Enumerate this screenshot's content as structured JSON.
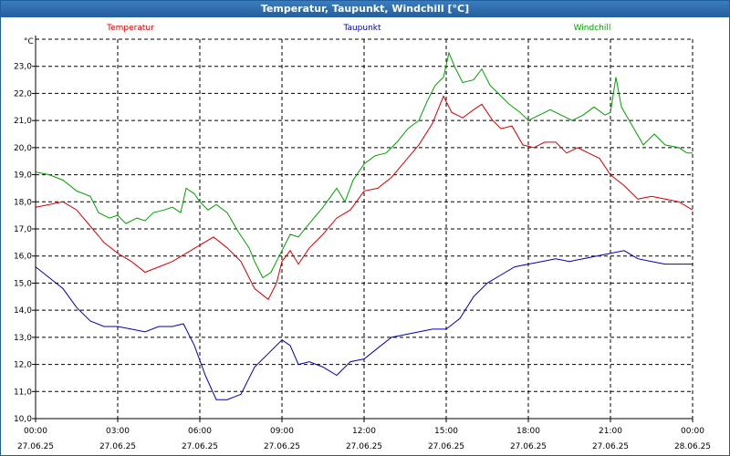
{
  "window": {
    "title": "Temperatur, Taupunkt, Windchill [°C]"
  },
  "chart_data": {
    "type": "line",
    "title": "Temperatur, Taupunkt, Windchill [°C]",
    "ylabel": "°C",
    "ylim": [
      10.0,
      24.0
    ],
    "xlim": [
      0,
      24
    ],
    "grid": true,
    "legend_position": "top",
    "y_ticks": [
      "10,0",
      "11,0",
      "12,0",
      "13,0",
      "14,0",
      "15,0",
      "16,0",
      "17,0",
      "18,0",
      "19,0",
      "20,0",
      "21,0",
      "22,0",
      "23,0"
    ],
    "x_ticks": [
      {
        "time": "00:00",
        "date": "27.06.25"
      },
      {
        "time": "03:00",
        "date": "27.06.25"
      },
      {
        "time": "06:00",
        "date": "27.06.25"
      },
      {
        "time": "09:00",
        "date": "27.06.25"
      },
      {
        "time": "12:00",
        "date": "27.06.25"
      },
      {
        "time": "15:00",
        "date": "27.06.25"
      },
      {
        "time": "18:00",
        "date": "27.06.25"
      },
      {
        "time": "21:00",
        "date": "27.06.25"
      },
      {
        "time": "00:00",
        "date": "28.06.25"
      }
    ],
    "series": [
      {
        "name": "Temperatur",
        "color": "#d40000",
        "points": [
          [
            0,
            17.8
          ],
          [
            0.5,
            17.9
          ],
          [
            1,
            18.0
          ],
          [
            1.5,
            17.7
          ],
          [
            2,
            17.1
          ],
          [
            2.5,
            16.5
          ],
          [
            3,
            16.1
          ],
          [
            3.5,
            15.8
          ],
          [
            4,
            15.4
          ],
          [
            4.5,
            15.6
          ],
          [
            5,
            15.8
          ],
          [
            5.5,
            16.1
          ],
          [
            6,
            16.4
          ],
          [
            6.5,
            16.7
          ],
          [
            7,
            16.3
          ],
          [
            7.5,
            15.8
          ],
          [
            8,
            14.8
          ],
          [
            8.5,
            14.4
          ],
          [
            8.8,
            15.0
          ],
          [
            9,
            15.8
          ],
          [
            9.3,
            16.2
          ],
          [
            9.6,
            15.7
          ],
          [
            10,
            16.3
          ],
          [
            10.5,
            16.8
          ],
          [
            11,
            17.4
          ],
          [
            11.5,
            17.7
          ],
          [
            12,
            18.4
          ],
          [
            12.5,
            18.5
          ],
          [
            13,
            18.9
          ],
          [
            13.5,
            19.5
          ],
          [
            14,
            20.1
          ],
          [
            14.5,
            20.9
          ],
          [
            14.9,
            21.9
          ],
          [
            15.2,
            21.3
          ],
          [
            15.6,
            21.1
          ],
          [
            16,
            21.4
          ],
          [
            16.3,
            21.6
          ],
          [
            16.7,
            21.0
          ],
          [
            17,
            20.7
          ],
          [
            17.4,
            20.8
          ],
          [
            17.8,
            20.1
          ],
          [
            18.2,
            20.0
          ],
          [
            18.6,
            20.2
          ],
          [
            19,
            20.2
          ],
          [
            19.4,
            19.8
          ],
          [
            19.8,
            20.0
          ],
          [
            20.2,
            19.8
          ],
          [
            20.6,
            19.6
          ],
          [
            21,
            19.0
          ],
          [
            21.5,
            18.6
          ],
          [
            22,
            18.1
          ],
          [
            22.5,
            18.2
          ],
          [
            23,
            18.1
          ],
          [
            23.5,
            18.0
          ],
          [
            24,
            17.7
          ]
        ]
      },
      {
        "name": "Taupunkt",
        "color": "#0000b4",
        "points": [
          [
            0,
            15.6
          ],
          [
            0.5,
            15.2
          ],
          [
            1,
            14.8
          ],
          [
            1.5,
            14.1
          ],
          [
            2,
            13.6
          ],
          [
            2.5,
            13.4
          ],
          [
            3,
            13.4
          ],
          [
            3.5,
            13.3
          ],
          [
            4,
            13.2
          ],
          [
            4.5,
            13.4
          ],
          [
            5,
            13.4
          ],
          [
            5.4,
            13.5
          ],
          [
            5.8,
            12.7
          ],
          [
            6.2,
            11.6
          ],
          [
            6.6,
            10.7
          ],
          [
            7,
            10.7
          ],
          [
            7.5,
            10.9
          ],
          [
            8,
            11.9
          ],
          [
            8.5,
            12.4
          ],
          [
            9,
            12.9
          ],
          [
            9.3,
            12.7
          ],
          [
            9.6,
            12.0
          ],
          [
            10,
            12.1
          ],
          [
            10.5,
            11.9
          ],
          [
            11,
            11.6
          ],
          [
            11.5,
            12.1
          ],
          [
            12,
            12.2
          ],
          [
            12.5,
            12.6
          ],
          [
            13,
            13.0
          ],
          [
            13.5,
            13.1
          ],
          [
            14,
            13.2
          ],
          [
            14.5,
            13.3
          ],
          [
            15,
            13.3
          ],
          [
            15.5,
            13.7
          ],
          [
            16,
            14.5
          ],
          [
            16.5,
            15.0
          ],
          [
            17,
            15.3
          ],
          [
            17.5,
            15.6
          ],
          [
            18,
            15.7
          ],
          [
            18.5,
            15.8
          ],
          [
            19,
            15.9
          ],
          [
            19.5,
            15.8
          ],
          [
            20,
            15.9
          ],
          [
            20.5,
            16.0
          ],
          [
            21,
            16.1
          ],
          [
            21.5,
            16.2
          ],
          [
            22,
            15.9
          ],
          [
            22.5,
            15.8
          ],
          [
            23,
            15.7
          ],
          [
            23.5,
            15.7
          ],
          [
            24,
            15.7
          ]
        ]
      },
      {
        "name": "Windchill",
        "color": "#00a000",
        "points": [
          [
            0,
            19.1
          ],
          [
            0.5,
            19.0
          ],
          [
            1,
            18.8
          ],
          [
            1.5,
            18.4
          ],
          [
            2,
            18.2
          ],
          [
            2.3,
            17.6
          ],
          [
            2.7,
            17.4
          ],
          [
            3,
            17.5
          ],
          [
            3.3,
            17.2
          ],
          [
            3.7,
            17.4
          ],
          [
            4,
            17.3
          ],
          [
            4.3,
            17.6
          ],
          [
            4.7,
            17.7
          ],
          [
            5,
            17.8
          ],
          [
            5.3,
            17.6
          ],
          [
            5.5,
            18.5
          ],
          [
            5.8,
            18.3
          ],
          [
            6,
            18.0
          ],
          [
            6.3,
            17.7
          ],
          [
            6.6,
            17.9
          ],
          [
            7,
            17.6
          ],
          [
            7.4,
            16.9
          ],
          [
            7.8,
            16.3
          ],
          [
            8,
            15.8
          ],
          [
            8.3,
            15.2
          ],
          [
            8.6,
            15.4
          ],
          [
            9,
            16.2
          ],
          [
            9.3,
            16.8
          ],
          [
            9.6,
            16.7
          ],
          [
            10,
            17.2
          ],
          [
            10.5,
            17.8
          ],
          [
            11,
            18.5
          ],
          [
            11.3,
            18.0
          ],
          [
            11.6,
            18.8
          ],
          [
            12,
            19.4
          ],
          [
            12.4,
            19.7
          ],
          [
            12.8,
            19.8
          ],
          [
            13.2,
            20.2
          ],
          [
            13.6,
            20.7
          ],
          [
            14,
            21.0
          ],
          [
            14.3,
            21.7
          ],
          [
            14.6,
            22.3
          ],
          [
            14.9,
            22.6
          ],
          [
            15.1,
            23.5
          ],
          [
            15.3,
            23.0
          ],
          [
            15.6,
            22.4
          ],
          [
            16,
            22.5
          ],
          [
            16.3,
            22.9
          ],
          [
            16.6,
            22.3
          ],
          [
            16.9,
            22.0
          ],
          [
            17.3,
            21.6
          ],
          [
            17.7,
            21.3
          ],
          [
            18,
            21.0
          ],
          [
            18.4,
            21.2
          ],
          [
            18.8,
            21.4
          ],
          [
            19.2,
            21.2
          ],
          [
            19.6,
            21.0
          ],
          [
            20,
            21.2
          ],
          [
            20.4,
            21.5
          ],
          [
            20.8,
            21.2
          ],
          [
            21,
            21.3
          ],
          [
            21.2,
            22.6
          ],
          [
            21.4,
            21.5
          ],
          [
            21.8,
            20.8
          ],
          [
            22.2,
            20.1
          ],
          [
            22.6,
            20.5
          ],
          [
            23,
            20.1
          ],
          [
            23.5,
            20.0
          ],
          [
            23.8,
            19.8
          ],
          [
            24,
            19.8
          ]
        ]
      }
    ]
  }
}
